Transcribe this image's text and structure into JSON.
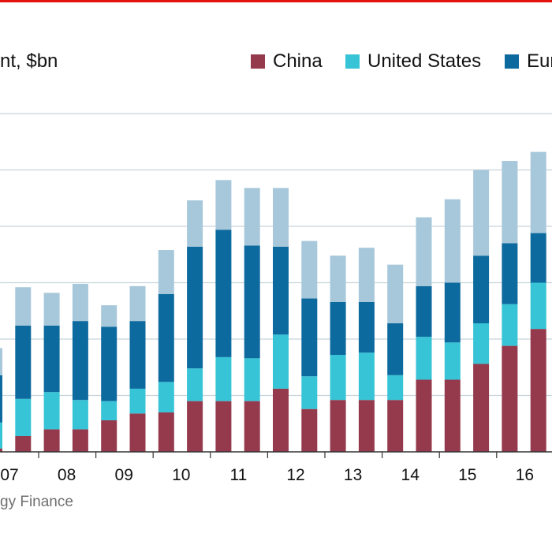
{
  "header": {
    "subtitle": "nt, $bn",
    "source": "gy Finance"
  },
  "colors": {
    "china": "#953a4c",
    "united_states": "#36c4d6",
    "europe": "#0d6a9e",
    "other": "#a7c8da",
    "gridline": "#c6d3dc",
    "top_rule": "#e3120b"
  },
  "legend": [
    {
      "label": "China",
      "color": "#953a4c"
    },
    {
      "label": "United States",
      "color": "#36c4d6"
    },
    {
      "label": "Europe",
      "color": "#0d6a9e"
    }
  ],
  "chart_data": {
    "type": "bar",
    "stacked": true,
    "x_tick_labels": [
      "07",
      "08",
      "09",
      "10",
      "11",
      "12",
      "13",
      "14",
      "15",
      "16"
    ],
    "ylim": [
      0,
      300
    ],
    "grid": true,
    "series": [
      {
        "name": "China",
        "values": [
          3,
          14,
          20,
          20,
          28,
          34,
          35,
          45,
          45,
          45,
          56,
          38,
          46,
          46,
          46,
          64,
          64,
          78,
          94,
          109,
          104,
          106
        ]
      },
      {
        "name": "United States",
        "values": [
          23,
          33,
          33,
          26,
          17,
          22,
          27,
          29,
          39,
          38,
          48,
          29,
          40,
          42,
          22,
          38,
          33,
          36,
          37,
          41,
          42,
          34
        ]
      },
      {
        "name": "Europe",
        "values": [
          42,
          65,
          59,
          70,
          66,
          60,
          78,
          108,
          113,
          100,
          78,
          69,
          47,
          45,
          46,
          45,
          53,
          60,
          54,
          44,
          71,
          49
        ]
      },
      {
        "name": "",
        "values": [
          24,
          34,
          29,
          33,
          19,
          31,
          39,
          41,
          44,
          51,
          52,
          51,
          41,
          48,
          52,
          61,
          74,
          76,
          73,
          72,
          61,
          57
        ]
      }
    ]
  }
}
